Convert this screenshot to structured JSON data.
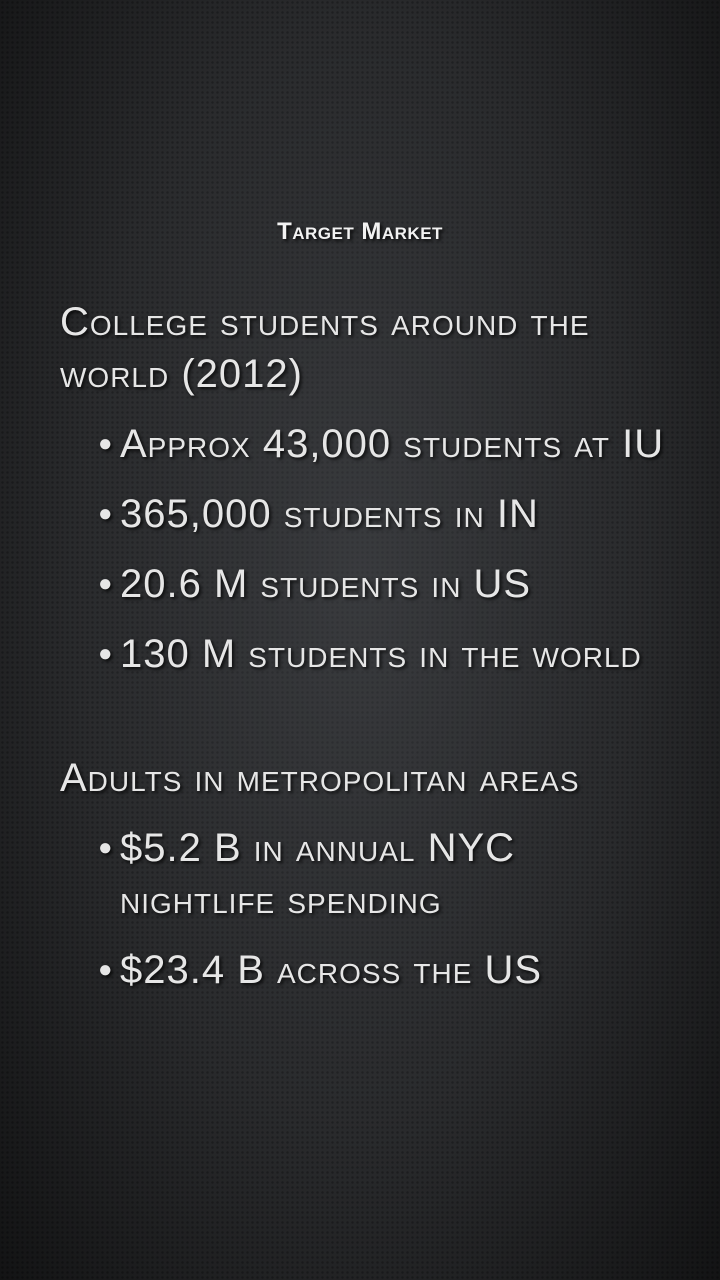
{
  "slide": {
    "title": "Target Market",
    "sections": [
      {
        "heading": "College students around the world (2012)",
        "bullets": [
          "Approx 43,000 students at IU",
          "365,000 students in IN",
          "20.6 M students in US",
          "130 M students in the world"
        ]
      },
      {
        "heading": "Adults in metropolitan areas",
        "bullets": [
          "$5.2 B in annual NYC nightlife spending",
          "$23.4 B across the US"
        ]
      }
    ]
  },
  "colors": {
    "background": "#2a2b2d",
    "text": "#e6e6e6"
  }
}
